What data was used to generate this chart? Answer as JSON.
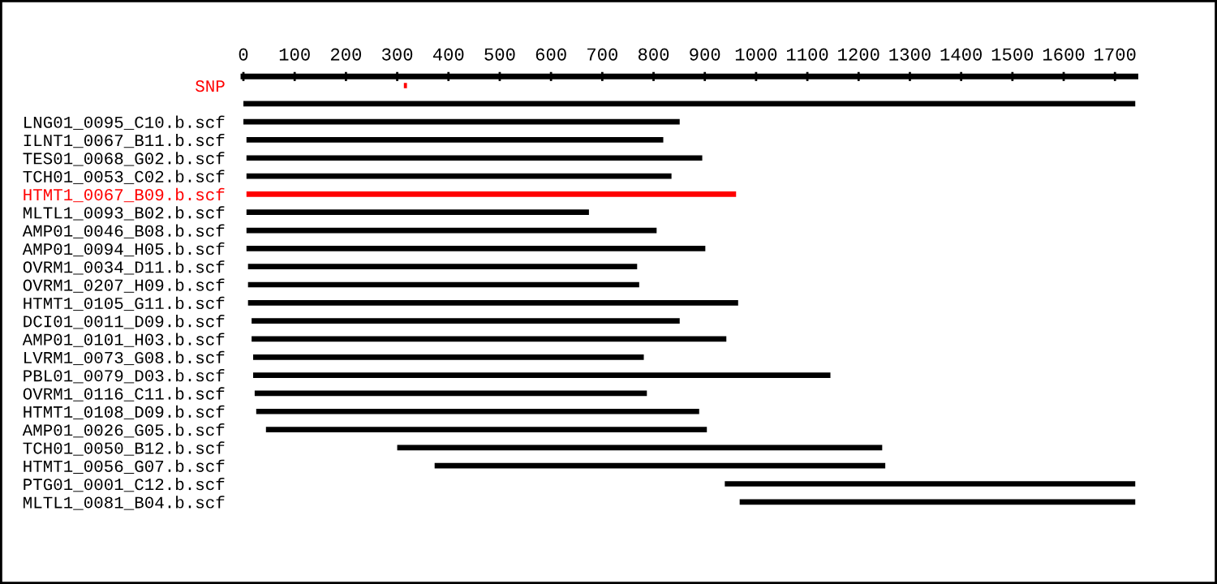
{
  "chart_data": {
    "type": "bar",
    "orientation": "horizontal",
    "categories": [
      "SNP",
      null,
      "LNG01_0095_C10.b.scf",
      "ILNT1_0067_B11.b.scf",
      "TES01_0068_G02.b.scf",
      "TCH01_0053_C02.b.scf",
      "HTMT1_0067_B09.b.scf",
      "MLTL1_0093_B02.b.scf",
      "AMP01_0046_B08.b.scf",
      "AMP01_0094_H05.b.scf",
      "OVRM1_0034_D11.b.scf",
      "OVRM1_0207_H09.b.scf",
      "HTMT1_0105_G11.b.scf",
      "DCI01_0011_D09.b.scf",
      "AMP01_0101_H03.b.scf",
      "LVRM1_0073_G08.b.scf",
      "PBL01_0079_D03.b.scf",
      "OVRM1_0116_C11.b.scf",
      "HTMT1_0108_D09.b.scf",
      "AMP01_0026_G05.b.scf",
      "TCH01_0050_B12.b.scf",
      "HTMT1_0056_G07.b.scf",
      "PTG01_0001_C12.b.scf",
      "MLTL1_0081_B04.b.scf"
    ],
    "base": [
      313,
      0,
      0,
      6,
      6,
      6,
      6,
      6,
      6,
      6,
      9,
      9,
      9,
      16,
      16,
      19,
      19,
      22,
      25,
      44,
      300,
      373,
      939,
      968
    ],
    "values": [
      6,
      1740,
      851,
      813,
      889,
      829,
      955,
      668,
      800,
      895,
      759,
      763,
      956,
      835,
      926,
      762,
      1126,
      765,
      864,
      860,
      946,
      879,
      801,
      772
    ],
    "colors": [
      "#ff0000",
      "#000000",
      "#000000",
      "#000000",
      "#000000",
      "#000000",
      "#ff0000",
      "#000000",
      "#000000",
      "#000000",
      "#000000",
      "#000000",
      "#000000",
      "#000000",
      "#000000",
      "#000000",
      "#000000",
      "#000000",
      "#000000",
      "#000000",
      "#000000",
      "#000000",
      "#000000",
      "#000000"
    ],
    "xlim": [
      0,
      1740
    ],
    "xticks": [
      0,
      100,
      200,
      300,
      400,
      500,
      600,
      700,
      800,
      900,
      1000,
      1100,
      1200,
      1300,
      1400,
      1500,
      1600,
      1700
    ],
    "grid": false,
    "legend": false
  }
}
